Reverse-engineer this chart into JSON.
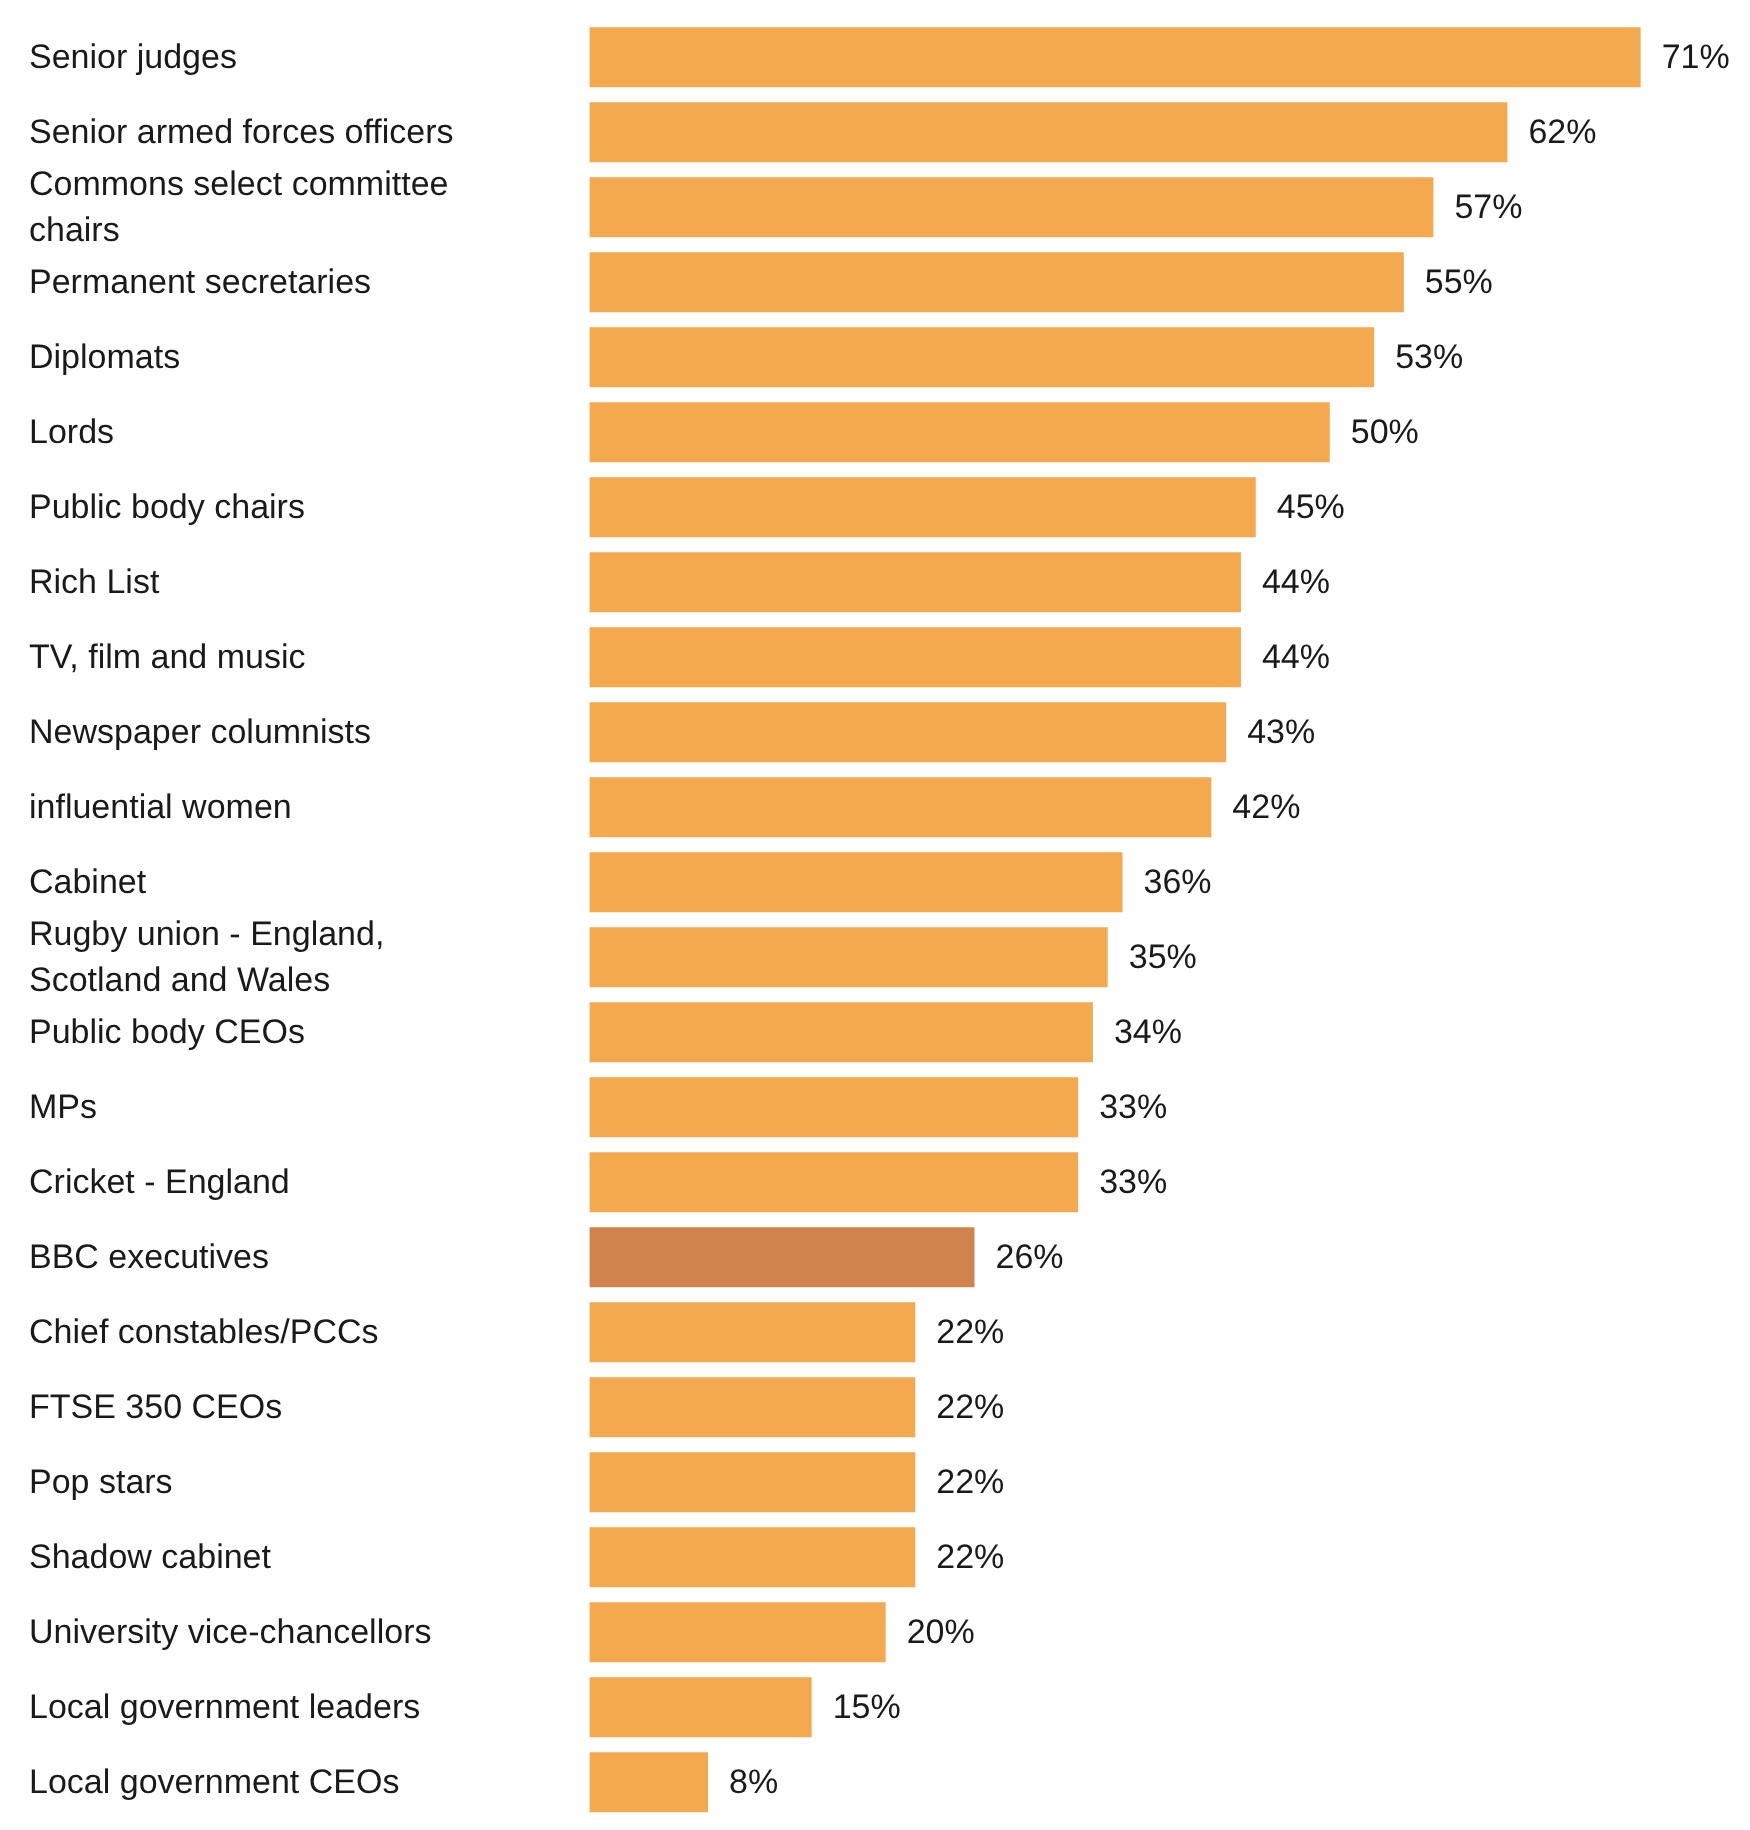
{
  "chart_data": {
    "type": "bar",
    "orientation": "horizontal",
    "categories": [
      "Senior judges",
      "Senior armed forces officers",
      "Commons select committee chairs",
      "Permanent secretaries",
      "Diplomats",
      "Lords",
      "Public body chairs",
      "Rich List",
      "TV, film and music",
      "Newspaper columnists",
      "influential women",
      "Cabinet",
      "Rugby union - England, Scotland and Wales",
      "Public body CEOs",
      "MPs",
      "Cricket - England",
      "BBC executives",
      "Chief constables/PCCs",
      "FTSE 350 CEOs",
      "Pop stars",
      "Shadow cabinet",
      "University vice-chancellors",
      "Local government leaders",
      "Local government CEOs"
    ],
    "values": [
      71,
      62,
      57,
      55,
      53,
      50,
      45,
      44,
      44,
      43,
      42,
      36,
      35,
      34,
      33,
      33,
      26,
      22,
      22,
      22,
      22,
      20,
      15,
      8
    ],
    "value_labels": [
      "71%",
      "62%",
      "57%",
      "55%",
      "53%",
      "50%",
      "45%",
      "44%",
      "44%",
      "43%",
      "42%",
      "36%",
      "35%",
      "34%",
      "33%",
      "33%",
      "26%",
      "22%",
      "22%",
      "22%",
      "22%",
      "20%",
      "15%",
      "8%"
    ],
    "colors": [
      "#f5a94f",
      "#f5a94f",
      "#f5a94f",
      "#f5a94f",
      "#f5a94f",
      "#f5a94f",
      "#f5a94f",
      "#f5a94f",
      "#f5a94f",
      "#f5a94f",
      "#f5a94f",
      "#f5a94f",
      "#f5a94f",
      "#f5a94f",
      "#f5a94f",
      "#f5a94f",
      "#d0834c",
      "#f5a94f",
      "#f5a94f",
      "#f5a94f",
      "#f5a94f",
      "#f5a94f",
      "#f5a94f",
      "#f5a94f"
    ]
  }
}
